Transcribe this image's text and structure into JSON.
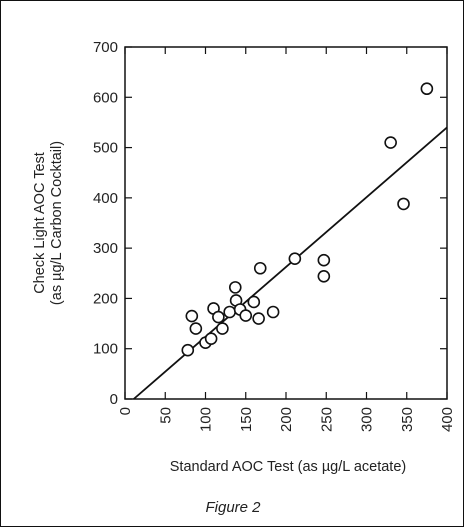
{
  "figure_caption": "Figure 2",
  "chart_data": {
    "type": "scatter",
    "title": "",
    "xlabel": "Standard AOC Test (as µg/L acetate)",
    "ylabel_line1": "Check Light AOC Test",
    "ylabel_line2": "(as µg/L Carbon Cocktail)",
    "xlim": [
      0,
      400
    ],
    "ylim": [
      0,
      700
    ],
    "x_ticks": [
      0,
      50,
      100,
      150,
      200,
      250,
      300,
      350,
      400
    ],
    "y_ticks": [
      0,
      100,
      200,
      300,
      400,
      500,
      600,
      700
    ],
    "x_tick_labels": [
      "0",
      "50",
      "100",
      "150",
      "200",
      "250",
      "300",
      "350",
      "400"
    ],
    "y_tick_labels": [
      "0",
      "100",
      "200",
      "300",
      "400",
      "500",
      "600",
      "700"
    ],
    "grid": false,
    "marker": "open-circle",
    "points": [
      {
        "x": 78,
        "y": 97
      },
      {
        "x": 83,
        "y": 165
      },
      {
        "x": 88,
        "y": 140
      },
      {
        "x": 100,
        "y": 112
      },
      {
        "x": 107,
        "y": 120
      },
      {
        "x": 110,
        "y": 180
      },
      {
        "x": 116,
        "y": 163
      },
      {
        "x": 121,
        "y": 140
      },
      {
        "x": 130,
        "y": 173
      },
      {
        "x": 137,
        "y": 222
      },
      {
        "x": 138,
        "y": 196
      },
      {
        "x": 143,
        "y": 178
      },
      {
        "x": 150,
        "y": 166
      },
      {
        "x": 160,
        "y": 193
      },
      {
        "x": 166,
        "y": 160
      },
      {
        "x": 168,
        "y": 260
      },
      {
        "x": 184,
        "y": 173
      },
      {
        "x": 211,
        "y": 279
      },
      {
        "x": 247,
        "y": 276
      },
      {
        "x": 247,
        "y": 244
      },
      {
        "x": 330,
        "y": 510
      },
      {
        "x": 346,
        "y": 388
      },
      {
        "x": 375,
        "y": 617
      }
    ],
    "regression_line": {
      "x": [
        0,
        400
      ],
      "y": [
        -15,
        540
      ]
    }
  }
}
